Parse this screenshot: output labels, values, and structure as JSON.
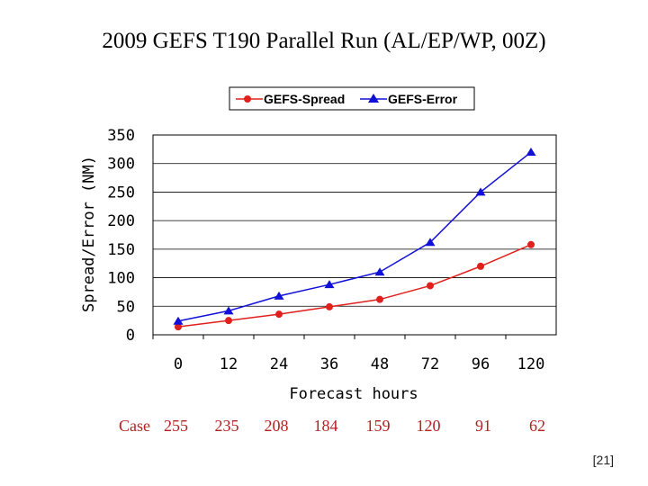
{
  "slide": {
    "title": "2009 GEFS T190 Parallel Run (AL/EP/WP, 00Z)",
    "page_number": "[21]"
  },
  "case_row": {
    "label": "Case",
    "counts": [
      "255",
      "235",
      "208",
      "184",
      "159",
      "120",
      "91",
      "62"
    ]
  },
  "chart_data": {
    "type": "line",
    "title": "",
    "xlabel": "Forecast hours",
    "ylabel": "Spread/Error (NM)",
    "categories": [
      "0",
      "12",
      "24",
      "36",
      "48",
      "72",
      "96",
      "120"
    ],
    "ylim": [
      0,
      350
    ],
    "yticks": [
      "0",
      "50",
      "100",
      "150",
      "200",
      "250",
      "300",
      "350"
    ],
    "grid": true,
    "legend_position": "top",
    "series": [
      {
        "name": "GEFS-Spread",
        "color": "#e0201c",
        "marker": "circle",
        "values": [
          14,
          25,
          36,
          49,
          62,
          86,
          120,
          158
        ]
      },
      {
        "name": "GEFS-Error",
        "color": "#1010d8",
        "marker": "triangle",
        "values": [
          24,
          42,
          68,
          88,
          110,
          162,
          250,
          320
        ]
      }
    ]
  }
}
